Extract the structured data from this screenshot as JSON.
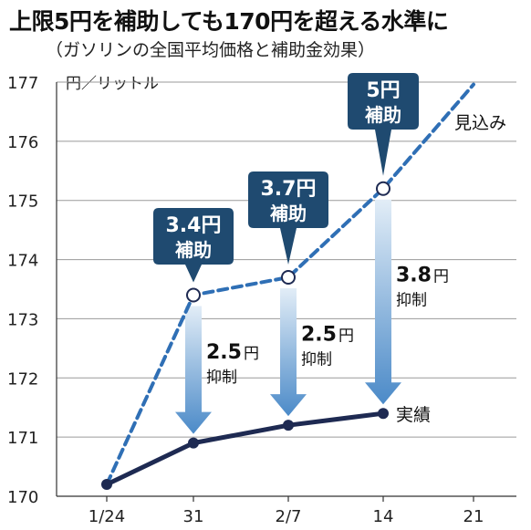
{
  "header": {
    "title": "上限5円を補助しても170円を超える水準に",
    "subtitle": "（ガソリンの全国平均価格と補助金効果）"
  },
  "chart_data": {
    "type": "line",
    "unit_label": "円／リットル",
    "x_ticks": [
      "1/24",
      "31",
      "2/7",
      "14",
      "21"
    ],
    "ylim": [
      170,
      177
    ],
    "y_ticks": [
      "170",
      "171",
      "172",
      "173",
      "174",
      "175",
      "176",
      "177"
    ],
    "grid": "horizontal",
    "series": [
      {
        "name": "実績",
        "style": "solid",
        "color": "#1e2a52",
        "points": [
          {
            "x": "1/24",
            "y": 170.2
          },
          {
            "x": "31",
            "y": 170.9
          },
          {
            "x": "2/7",
            "y": 171.2
          },
          {
            "x": "14",
            "y": 171.4
          }
        ]
      },
      {
        "name": "見込み",
        "style": "dashed",
        "color": "#2f6fb5",
        "points": [
          {
            "x": "1/24",
            "y": 170.2
          },
          {
            "x": "31",
            "y": 173.4
          },
          {
            "x": "2/7",
            "y": 173.7
          },
          {
            "x": "14",
            "y": 175.2
          },
          {
            "x": "21",
            "y": 176.96
          }
        ]
      }
    ],
    "annotations": [
      {
        "x": "31",
        "callout": [
          "3.4円",
          "補助"
        ],
        "suppress_value": "2.5",
        "suppress_unit": "円",
        "suppress_label": "抑制"
      },
      {
        "x": "2/7",
        "callout": [
          "3.7円",
          "補助"
        ],
        "suppress_value": "2.5",
        "suppress_unit": "円",
        "suppress_label": "抑制"
      },
      {
        "x": "14",
        "callout": [
          "5円",
          "補助"
        ],
        "suppress_value": "3.8",
        "suppress_unit": "円",
        "suppress_label": "抑制"
      }
    ]
  },
  "colors": {
    "navy": "#1e2a52",
    "dashed_blue": "#2f6fb5",
    "callout": "#1f4a70",
    "arrow_top": "#dce9f5",
    "arrow_bottom": "#4b8ac8",
    "grid": "#9a9a9a"
  }
}
